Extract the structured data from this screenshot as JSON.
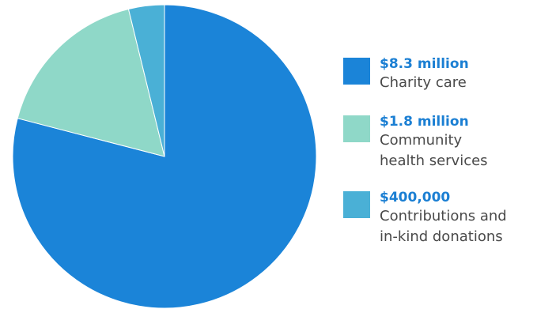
{
  "chart_data": {
    "type": "pie",
    "title": "",
    "start": "12 o'clock",
    "direction": "clockwise",
    "units": "USD",
    "slices": [
      {
        "value": 8300000,
        "value_label": "$8.3 million",
        "label_lines": [
          "Charity care"
        ],
        "color": "#1b84d8"
      },
      {
        "value": 1800000,
        "value_label": "$1.8 million",
        "label_lines": [
          "Community",
          "health services"
        ],
        "color": "#8fd8c8"
      },
      {
        "value": 400000,
        "value_label": "$400,000",
        "label_lines": [
          "Contributions and",
          "in-kind donations"
        ],
        "color": "#4ab0d6"
      }
    ],
    "legend_position": "right"
  }
}
